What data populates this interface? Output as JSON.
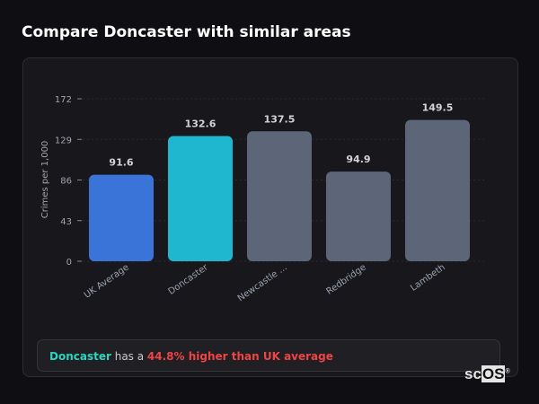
{
  "title": "Compare Doncaster with similar areas",
  "chart_data": {
    "type": "bar",
    "categories": [
      "UK Average",
      "Doncaster",
      "Newcastle ...",
      "Redbridge",
      "Lambeth"
    ],
    "values": [
      91.6,
      132.6,
      137.5,
      94.9,
      149.5
    ],
    "data_labels": [
      "91.6",
      "132.6",
      "137.5",
      "94.9",
      "149.5"
    ],
    "colors": [
      "#3b74d9",
      "#1fb6cf",
      "#5c6678",
      "#5c6678",
      "#5c6678"
    ],
    "ylabel": "Crimes per 1,000",
    "xlabel": "",
    "yticks": [
      0,
      43,
      86,
      129,
      172
    ],
    "ylim": [
      0,
      172
    ],
    "grid": true
  },
  "note": {
    "area": "Doncaster",
    "middle": " has a ",
    "comparison": "44.8% higher than UK average"
  },
  "logo": {
    "text_a": "sc",
    "text_b": "OS",
    "mark": "®"
  }
}
